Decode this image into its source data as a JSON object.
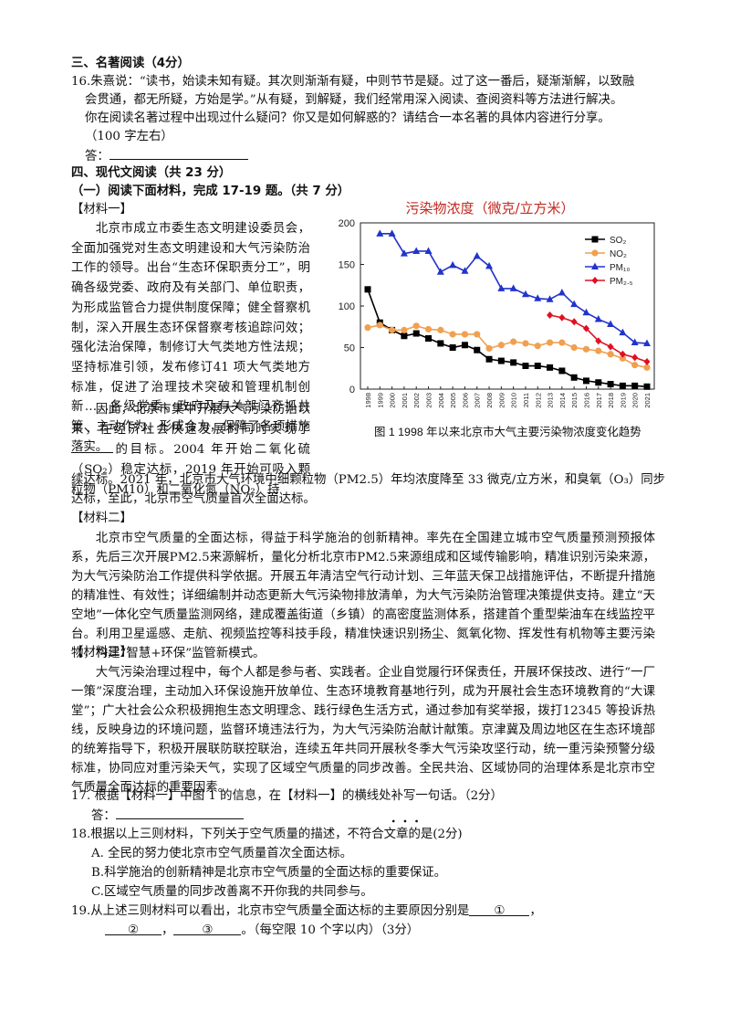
{
  "section3": {
    "title": "三、名著阅读（4分）",
    "q16": {
      "lines": [
        "16.朱熹说：“读书，始读未知有疑。其次则渐渐有疑，中则节节是疑。过了这一番后，疑渐渐解，以致融",
        "会贯通，都无所疑，方始是学。”从有疑，到解疑，我们经常用深入阅读、查阅资料等方法进行解决。",
        "你在阅读名著过程中出现过什么疑问？你又是如何解惑的？请结合一本名著的具体内容进行分享。",
        "（100 字左右）"
      ],
      "answer_label": "答："
    }
  },
  "section4": {
    "title": "四、现代文阅读（共 23 分）",
    "part1_title": "（一）阅读下面材料，完成  17-19 题。（共  7  分）",
    "material1": {
      "label": "【材料一】",
      "p1": "北京市成立市委生态文明建设委员会，全面加强党对生态文明建设和大气污染防治工作的领导。出台“生态环保职责分工”，明确各级党委、政府及有关部门、单位职责，为形成监管合力提供制度保障；健全督察机制，深入开展生态环保督察考核追踪问效；强化法治保障，制修订大气类地方性法规；坚持标准引领，发布修订41 项大气类地方标准，促进了治理技术突破和管理机制创新……各级党委、政府及有关部门齐抓共管、主动作为、形成合力，保障了各项措施落实。",
      "p2_part1": "因此，北京市集中开展大气污染防治以来，在经济社会快速发展的同时实现了",
      "p2_part2": "的目标。2004 年开始二氧化硫（SO₂）稳定达标，2019 年开始可吸入颗粒物（PM10）和二氧化氮（NO₂）持",
      "p2_part3": "续达标。2021 年，北京市大气环境中细颗粒物（PM2.5）年均浓度降至 33 微克/立方米，和臭氧（O₃）同步",
      "p2_part4": "达标，至此，北京市空气质量首次全面达标。"
    },
    "material2": {
      "label": "【材料二】",
      "text": "北京市空气质量的全面达标，得益于科学施治的创新精神。率先在全国建立城市空气质量预测预报体系，先后三次开展PM2.5来源解析，量化分析北京市PM2.5来源组成和区域传输影响，精准识别污染来源，为大气污染防治工作提供科学依据。开展五年清洁空气行动计划、三年蓝天保卫战措施评估，不断提升措施的精准性、有效性；详细编制并动态更新大气污染物排放清单，为大气污染防治管理决策提供支持。建立“天空地”一体化空气质量监测网络，建成覆盖街道（乡镇）的高密度监测体系，搭建首个重型柴油车在线监控平台。利用卫星遥感、走航、视频监控等科技手段，精准快速识别扬尘、氮氧化物、挥发性有机物等主要污染物，构建“智慧+环保”监管新模式。"
    },
    "material3": {
      "label": "【材料三】",
      "text": "大气污染治理过程中，每个人都是参与者、实践者。企业自觉履行环保责任，开展环保技改、进行“一厂一策”深度治理，主动加入环保设施开放单位、生态环境教育基地行列，成为开展社会生态环境教育的“大课堂”；广大社会公众积极拥抱生态文明理念、践行绿色生活方式，通过参加有奖举报，拨打12345 等投诉热线，反映身边的环境问题，监督环境违法行为，为大气污染防治献计献策。京津冀及周边地区在生态环境部的统筹指导下，积极开展联防联控联治，连续五年共同开展秋冬季大气污染攻坚行动，统一重污染预警分级标准，协同应对重污染天气，实现了区域空气质量的同步改善。全民共治、区域协同的治理体系是北京市空气质量全面达标的重要因素。"
    },
    "q17": {
      "text": "17. 根据【材料一】中图 1 的信息，在【材料一】的横线处补写一句话。（2分）",
      "answer_label": "答："
    },
    "q18": {
      "text": "18.根据以上三则材料，下列关于空气质量的描述，不符合文章的是(2分)",
      "emphasis_dots": "．．．",
      "options": [
        "A. 全民的努力使北京市空气质量首次全面达标。",
        "B.科学施治的创新精神是北京市空气质量的全面达标的重要保证。",
        "C.区域空气质量的同步改善离不开你我的共同参与。"
      ]
    },
    "q19": {
      "line1": "19.从上述三则材料可以看出，北京市空气质量全面达标的主要原因分别是",
      "marker1": "①",
      "marker2": "②",
      "marker3": "③",
      "tail": "。（每空限 10 个字以内）（3分）"
    }
  },
  "chart_data": {
    "type": "line",
    "title": "污染物浓度（微克/立方米）",
    "caption": "图 1  1998 年以来北京市大气主要污染物浓度变化趋势",
    "x": [
      "1998",
      "1999",
      "2000",
      "2001",
      "2002",
      "2003",
      "2004",
      "2005",
      "2006",
      "2007",
      "2008",
      "2009",
      "2010",
      "2011",
      "2012",
      "2013",
      "2014",
      "2015",
      "2016",
      "2017",
      "2018",
      "2019",
      "2020",
      "2021"
    ],
    "ylim": [
      0,
      200
    ],
    "yticks": [
      "0",
      "50",
      "100",
      "150",
      "200"
    ],
    "legend_position": "top-right",
    "series": [
      {
        "name": "SO₂",
        "color": "#000000",
        "marker": "square",
        "values": [
          120,
          80,
          71,
          64,
          67,
          61,
          55,
          50,
          53,
          47,
          36,
          34,
          32,
          28,
          28,
          26,
          22,
          14,
          10,
          8,
          6,
          4,
          4,
          3
        ]
      },
      {
        "name": "NO₂",
        "color": "#f0a050",
        "marker": "circle",
        "values": [
          74,
          77,
          71,
          71,
          76,
          72,
          71,
          66,
          66,
          66,
          49,
          53,
          57,
          55,
          52,
          56,
          56,
          50,
          48,
          46,
          42,
          37,
          29,
          26
        ]
      },
      {
        "name": "PM₁₀",
        "color": "#2233cc",
        "marker": "triangle",
        "values": [
          null,
          187,
          187,
          163,
          166,
          166,
          141,
          149,
          142,
          160,
          148,
          121,
          121,
          114,
          109,
          108,
          116,
          102,
          92,
          84,
          78,
          68,
          56,
          55
        ]
      },
      {
        "name": "PM₂.₅",
        "color": "#e01020",
        "marker": "diamond",
        "values": [
          null,
          null,
          null,
          null,
          null,
          null,
          null,
          null,
          null,
          null,
          null,
          null,
          null,
          null,
          null,
          89,
          86,
          81,
          73,
          58,
          51,
          42,
          38,
          33
        ]
      }
    ]
  }
}
